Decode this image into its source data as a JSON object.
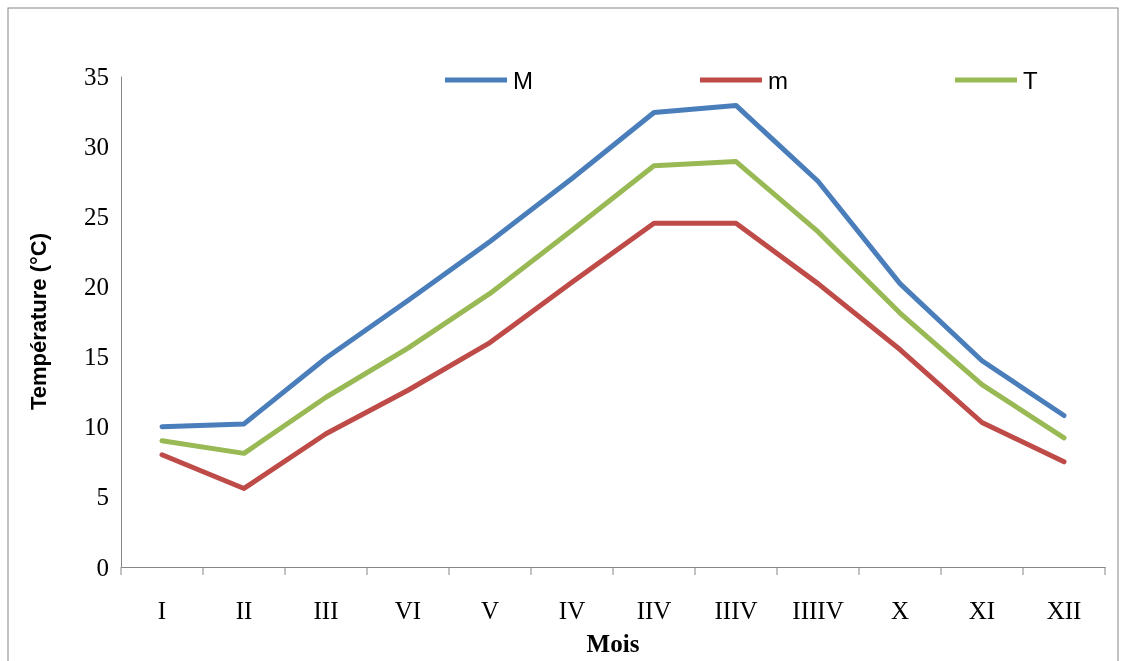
{
  "chart_data": {
    "type": "line",
    "xlabel": "Mois",
    "ylabel": "Température (°C)",
    "categories": [
      "I",
      "II",
      "III",
      "VI",
      "V",
      "IV",
      "IIV",
      "IIIV",
      "IIIIV",
      "X",
      "XI",
      "XII"
    ],
    "ylim": [
      0,
      35
    ],
    "yticks": [
      0,
      5,
      10,
      15,
      20,
      25,
      30,
      35
    ],
    "grid": false,
    "legend": "top",
    "marker": "none",
    "line_style": "solid",
    "series": [
      {
        "name": "M",
        "color": "#4a7ebb",
        "values": [
          10.0,
          10.2,
          14.9,
          19.0,
          23.2,
          27.7,
          32.4,
          32.9,
          27.5,
          20.2,
          14.7,
          10.8
        ]
      },
      {
        "name": "m",
        "color": "#be4b48",
        "values": [
          8.0,
          5.6,
          9.5,
          12.6,
          16.0,
          20.3,
          24.5,
          24.5,
          20.2,
          15.5,
          10.3,
          7.5
        ]
      },
      {
        "name": "T",
        "color": "#98b954",
        "values": [
          9.0,
          8.1,
          12.1,
          15.6,
          19.5,
          24.0,
          28.6,
          28.9,
          23.9,
          18.1,
          13.0,
          9.2
        ]
      }
    ]
  }
}
